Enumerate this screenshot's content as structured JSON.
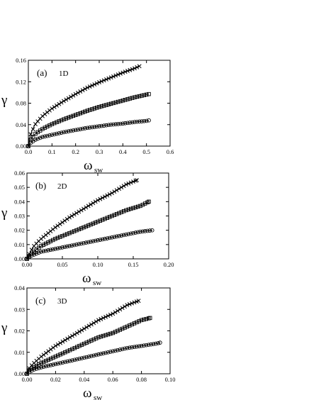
{
  "chart_data": [
    {
      "type": "line",
      "panel_label": "(a)",
      "panel_sublabel": "1D",
      "xlabel_main": "ω",
      "xlabel_sub": "sw",
      "ylabel": "γ",
      "xlim": [
        0,
        0.6
      ],
      "ylim": [
        0,
        0.16
      ],
      "xticks": [
        "0.0",
        "0.1",
        "0.2",
        "0.3",
        "0.4",
        "0.5",
        "0.6"
      ],
      "yticks": [
        "0.00",
        "0.04",
        "0.08",
        "0.12",
        "0.16"
      ],
      "grid": false,
      "series": [
        {
          "marker": "x",
          "x": [
            0.0,
            0.01,
            0.03,
            0.06,
            0.1,
            0.15,
            0.2,
            0.25,
            0.3,
            0.35,
            0.4,
            0.45,
            0.47
          ],
          "y": [
            0.0,
            0.022,
            0.041,
            0.056,
            0.07,
            0.084,
            0.097,
            0.109,
            0.119,
            0.128,
            0.137,
            0.145,
            0.149
          ]
        },
        {
          "marker": "square",
          "x": [
            0.0,
            0.01,
            0.03,
            0.06,
            0.1,
            0.15,
            0.2,
            0.25,
            0.3,
            0.35,
            0.4,
            0.45,
            0.5,
            0.51
          ],
          "y": [
            0.0,
            0.012,
            0.023,
            0.032,
            0.041,
            0.05,
            0.058,
            0.066,
            0.073,
            0.079,
            0.085,
            0.091,
            0.096,
            0.097
          ]
        },
        {
          "marker": "circle",
          "x": [
            0.0,
            0.01,
            0.03,
            0.06,
            0.1,
            0.15,
            0.2,
            0.25,
            0.3,
            0.35,
            0.4,
            0.45,
            0.5,
            0.51
          ],
          "y": [
            0.0,
            0.006,
            0.012,
            0.017,
            0.021,
            0.026,
            0.03,
            0.034,
            0.037,
            0.04,
            0.042,
            0.045,
            0.047,
            0.048
          ]
        }
      ]
    },
    {
      "type": "line",
      "panel_label": "(b)",
      "panel_sublabel": "2D",
      "xlabel_main": "ω",
      "xlabel_sub": "sw",
      "ylabel": "γ",
      "xlim": [
        0,
        0.2
      ],
      "ylim": [
        0,
        0.06
      ],
      "xticks": [
        "0.00",
        "0.05",
        "0.10",
        "0.15",
        "0.20"
      ],
      "yticks": [
        "0.00",
        "0.01",
        "0.02",
        "0.03",
        "0.04",
        "0.05",
        "0.06"
      ],
      "grid": false,
      "series": [
        {
          "marker": "x",
          "x": [
            0.0,
            0.005,
            0.01,
            0.02,
            0.04,
            0.06,
            0.08,
            0.1,
            0.12,
            0.14,
            0.155
          ],
          "y": [
            0.0,
            0.005,
            0.009,
            0.014,
            0.022,
            0.029,
            0.035,
            0.041,
            0.046,
            0.052,
            0.055
          ]
        },
        {
          "marker": "square",
          "x": [
            0.0,
            0.005,
            0.01,
            0.02,
            0.04,
            0.06,
            0.08,
            0.1,
            0.12,
            0.14,
            0.16,
            0.172
          ],
          "y": [
            0.0,
            0.003,
            0.005,
            0.009,
            0.014,
            0.018,
            0.022,
            0.026,
            0.03,
            0.034,
            0.037,
            0.04
          ]
        },
        {
          "marker": "circle",
          "x": [
            0.0,
            0.005,
            0.01,
            0.02,
            0.04,
            0.06,
            0.08,
            0.1,
            0.12,
            0.14,
            0.16,
            0.177
          ],
          "y": [
            0.0,
            0.002,
            0.003,
            0.005,
            0.007,
            0.009,
            0.011,
            0.013,
            0.015,
            0.017,
            0.019,
            0.02
          ]
        }
      ]
    },
    {
      "type": "line",
      "panel_label": "(c)",
      "panel_sublabel": "3D",
      "xlabel_main": "ω",
      "xlabel_sub": "sw",
      "ylabel": "γ",
      "xlim": [
        0,
        0.1
      ],
      "ylim": [
        0,
        0.04
      ],
      "xticks": [
        "0.00",
        "0.02",
        "0.04",
        "0.06",
        "0.08",
        "0.10"
      ],
      "yticks": [
        "0.00",
        "0.01",
        "0.02",
        "0.03",
        "0.04"
      ],
      "grid": false,
      "series": [
        {
          "marker": "x",
          "x": [
            0.0,
            0.002,
            0.005,
            0.01,
            0.02,
            0.03,
            0.04,
            0.05,
            0.06,
            0.07,
            0.078
          ],
          "y": [
            0.0,
            0.003,
            0.005,
            0.008,
            0.013,
            0.017,
            0.021,
            0.025,
            0.028,
            0.032,
            0.034
          ]
        },
        {
          "marker": "square",
          "x": [
            0.0,
            0.002,
            0.005,
            0.01,
            0.02,
            0.03,
            0.04,
            0.05,
            0.06,
            0.07,
            0.08,
            0.086
          ],
          "y": [
            0.0,
            0.002,
            0.003,
            0.005,
            0.008,
            0.011,
            0.014,
            0.017,
            0.019,
            0.022,
            0.025,
            0.026
          ]
        },
        {
          "marker": "circle",
          "x": [
            0.0,
            0.002,
            0.005,
            0.01,
            0.02,
            0.03,
            0.04,
            0.05,
            0.06,
            0.07,
            0.08,
            0.09,
            0.093
          ],
          "y": [
            0.0,
            0.001,
            0.002,
            0.003,
            0.0045,
            0.006,
            0.0075,
            0.009,
            0.0105,
            0.012,
            0.013,
            0.014,
            0.0145
          ]
        }
      ]
    }
  ]
}
